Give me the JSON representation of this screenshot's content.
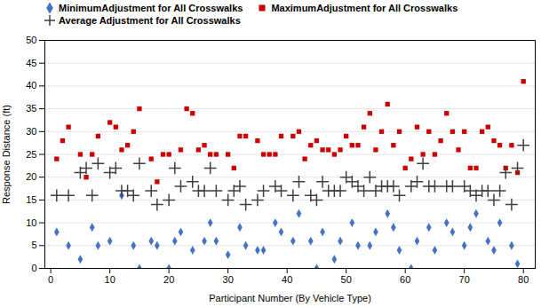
{
  "chart_data": {
    "type": "scatter",
    "xlabel": "Participant Number (By Vehicle Type)",
    "ylabel": "Response Distance (ft)",
    "xlim": [
      -1,
      82
    ],
    "ylim": [
      0,
      50
    ],
    "xticks": [
      0,
      10,
      20,
      30,
      40,
      50,
      60,
      70,
      80
    ],
    "yticks": [
      0,
      5,
      10,
      15,
      20,
      25,
      30,
      35,
      40,
      45,
      50
    ],
    "grid": "y",
    "legend": "upper left",
    "series": [
      {
        "name": "MinimumAdjustment for All Crosswalks",
        "color": "#4472C4",
        "marker": "diamond",
        "x": [
          1,
          3,
          5,
          7,
          8,
          10,
          12,
          14,
          15,
          17,
          18,
          20,
          21,
          22,
          24,
          26,
          27,
          28,
          30,
          32,
          33,
          35,
          36,
          38,
          39,
          41,
          42,
          44,
          45,
          46,
          48,
          49,
          51,
          52,
          54,
          55,
          57,
          58,
          59,
          61,
          62,
          64,
          65,
          67,
          68,
          70,
          71,
          72,
          74,
          75,
          76,
          78,
          79
        ],
        "values": [
          8,
          5,
          2,
          9,
          5,
          6,
          16,
          5,
          0,
          6,
          5,
          0,
          6,
          8,
          4,
          6,
          10,
          6,
          3,
          9,
          5,
          4,
          4,
          10,
          8,
          6,
          12,
          6,
          0,
          8,
          2,
          6,
          10,
          5,
          5,
          8,
          12,
          9,
          4,
          0,
          6,
          9,
          4,
          10,
          8,
          5,
          9,
          12,
          6,
          4,
          10,
          5,
          1
        ]
      },
      {
        "name": "MaximumAdjustment for All Crosswalks",
        "color": "#CC0000",
        "marker": "square",
        "x": [
          1,
          2,
          3,
          5,
          6,
          7,
          8,
          10,
          11,
          12,
          13,
          14,
          15,
          17,
          18,
          19,
          20,
          22,
          23,
          24,
          25,
          26,
          27,
          28,
          30,
          31,
          32,
          33,
          35,
          36,
          37,
          38,
          39,
          41,
          42,
          43,
          44,
          45,
          46,
          47,
          48,
          49,
          50,
          51,
          52,
          53,
          54,
          55,
          56,
          57,
          58,
          59,
          60,
          61,
          62,
          63,
          64,
          65,
          66,
          67,
          68,
          69,
          70,
          71,
          72,
          73,
          74,
          75,
          76,
          77,
          78,
          79,
          80
        ],
        "values": [
          24,
          28,
          31,
          25,
          20,
          25,
          29,
          32,
          31,
          26,
          27,
          30,
          35,
          24,
          19,
          25,
          25,
          26,
          35,
          34,
          26,
          27,
          25,
          25,
          25,
          22,
          29,
          29,
          28,
          25,
          25,
          25,
          29,
          29,
          30,
          24,
          27,
          28,
          26,
          26,
          25,
          26,
          29,
          27,
          27,
          31,
          34,
          26,
          30,
          36,
          27,
          30,
          22,
          24,
          31,
          25,
          30,
          25,
          28,
          34,
          30,
          26,
          30,
          22,
          22,
          30,
          31,
          28,
          27,
          22,
          27,
          21,
          41
        ]
      },
      {
        "name": "Average Adjustment for All Crosswalks",
        "color": "#404040",
        "marker": "plus",
        "x": [
          1,
          3,
          5,
          6,
          7,
          8,
          10,
          11,
          12,
          13,
          14,
          15,
          17,
          18,
          20,
          21,
          22,
          24,
          25,
          26,
          27,
          28,
          30,
          31,
          32,
          33,
          35,
          36,
          38,
          39,
          41,
          42,
          44,
          45,
          46,
          47,
          48,
          49,
          50,
          51,
          52,
          53,
          54,
          55,
          56,
          57,
          58,
          59,
          61,
          62,
          63,
          64,
          65,
          67,
          68,
          70,
          71,
          72,
          73,
          74,
          75,
          76,
          77,
          78,
          79,
          80
        ],
        "values": [
          16,
          16,
          21,
          22,
          16,
          23,
          21,
          22,
          17,
          17,
          16,
          23,
          17,
          14,
          15,
          22,
          18,
          19,
          17,
          17,
          22,
          17,
          15,
          17,
          18,
          14,
          15,
          17,
          18,
          17,
          16,
          19,
          16,
          15,
          19,
          17,
          17,
          17,
          20,
          19,
          18,
          17,
          20,
          17,
          18,
          18,
          18,
          16,
          18,
          19,
          23,
          18,
          18,
          18,
          18,
          18,
          17,
          16,
          17,
          17,
          15,
          17,
          21,
          14,
          22,
          27
        ]
      }
    ]
  }
}
